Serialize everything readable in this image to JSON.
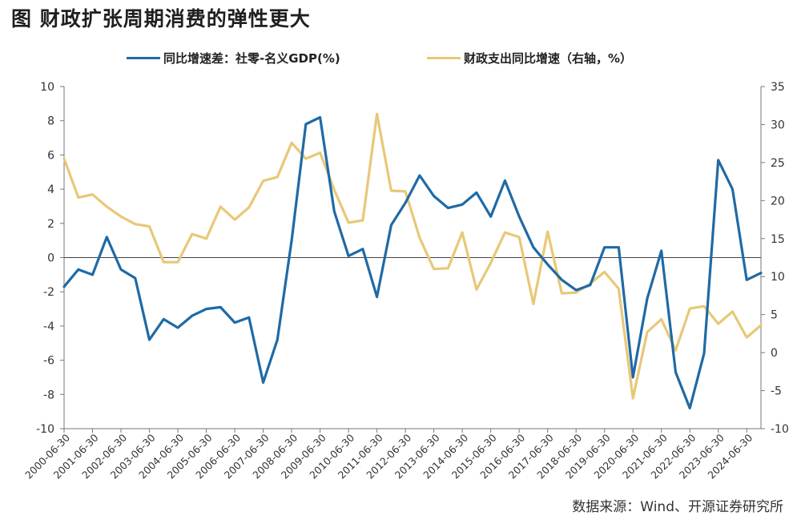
{
  "title": "图  财政扩张周期消费的弹性更大",
  "source": "数据来源：Wind、开源证券研究所",
  "chart_data": {
    "type": "line",
    "x": [
      "2000-06-30",
      "2000-12-31",
      "2001-06-30",
      "2001-12-31",
      "2002-06-30",
      "2002-12-31",
      "2003-06-30",
      "2003-12-31",
      "2004-06-30",
      "2004-12-31",
      "2005-06-30",
      "2005-12-31",
      "2006-06-30",
      "2006-12-31",
      "2007-06-30",
      "2007-12-31",
      "2008-06-30",
      "2008-12-31",
      "2009-06-30",
      "2009-12-31",
      "2010-06-30",
      "2010-12-31",
      "2011-06-30",
      "2011-12-31",
      "2012-06-30",
      "2012-12-31",
      "2013-06-30",
      "2013-12-31",
      "2014-06-30",
      "2014-12-31",
      "2015-06-30",
      "2015-12-31",
      "2016-06-30",
      "2016-12-31",
      "2017-06-30",
      "2017-12-31",
      "2018-06-30",
      "2018-12-31",
      "2019-06-30",
      "2019-12-31",
      "2020-06-30",
      "2020-12-31",
      "2021-06-30",
      "2021-12-31",
      "2022-06-30",
      "2022-12-31",
      "2023-06-30",
      "2023-12-31",
      "2024-06-30",
      "2024-12-31"
    ],
    "x_tick_labels": [
      "2000-06-30",
      "2001-06-30",
      "2002-06-30",
      "2003-06-30",
      "2004-06-30",
      "2005-06-30",
      "2006-06-30",
      "2007-06-30",
      "2008-06-30",
      "2009-06-30",
      "2010-06-30",
      "2011-06-30",
      "2012-06-30",
      "2013-06-30",
      "2014-06-30",
      "2015-06-30",
      "2016-06-30",
      "2017-06-30",
      "2018-06-30",
      "2019-06-30",
      "2020-06-30",
      "2021-06-30",
      "2022-06-30",
      "2023-06-30",
      "2024-06-30"
    ],
    "y_left": {
      "min": -10,
      "max": 10,
      "ticks": [
        10,
        8,
        6,
        4,
        2,
        0,
        -2,
        -4,
        -6,
        -8,
        -10
      ]
    },
    "y_right": {
      "min": -10,
      "max": 35,
      "ticks": [
        35,
        30,
        25,
        20,
        15,
        10,
        5,
        0,
        -5,
        -10
      ]
    },
    "legend_position": "top-center",
    "series": [
      {
        "name": "同比增速差：社零-名义GDP(%)",
        "axis": "left",
        "color": "#1f6aa5",
        "values": [
          -1.7,
          -0.7,
          -1.0,
          1.2,
          -0.7,
          -1.2,
          -4.8,
          -3.6,
          -4.1,
          -3.4,
          -3.0,
          -2.9,
          -3.8,
          -3.5,
          -7.3,
          -4.8,
          1.0,
          7.8,
          8.2,
          2.7,
          0.1,
          0.5,
          -2.3,
          1.9,
          3.2,
          4.8,
          3.6,
          2.9,
          3.1,
          3.8,
          2.4,
          4.5,
          2.4,
          0.6,
          -0.4,
          -1.3,
          -1.9,
          -1.6,
          0.6,
          0.6,
          -7.0,
          -2.4,
          0.4,
          -6.7,
          -8.8,
          -5.6,
          5.7,
          4.0,
          -1.3,
          -0.9
        ]
      },
      {
        "name": "财政支出同比增速（右轴，%）",
        "axis": "right",
        "color": "#e8c878",
        "values": [
          25.5,
          20.4,
          20.8,
          19.2,
          17.9,
          16.9,
          16.6,
          11.9,
          11.9,
          15.6,
          15.0,
          19.2,
          17.5,
          19.1,
          22.6,
          23.1,
          27.6,
          25.5,
          26.3,
          21.4,
          17.1,
          17.4,
          31.4,
          21.3,
          21.2,
          15.1,
          11.0,
          11.1,
          15.8,
          8.3,
          11.8,
          15.8,
          15.2,
          6.4,
          15.9,
          7.8,
          7.9,
          9.1,
          10.6,
          8.4,
          -6.0,
          2.7,
          4.4,
          0.3,
          5.8,
          6.1,
          3.8,
          5.4,
          2.0,
          3.6
        ]
      }
    ]
  }
}
